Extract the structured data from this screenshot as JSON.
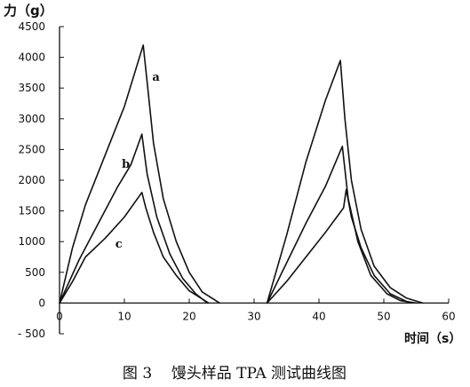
{
  "chart_data": {
    "type": "line",
    "ylabel": "力（g）",
    "xlabel": "时间（s）",
    "caption": "图 3    馒头样品 TPA 测试曲线图",
    "xlim": [
      0,
      60
    ],
    "ylim": [
      -500,
      4500
    ],
    "xticks": [
      0,
      10,
      20,
      30,
      40,
      50,
      60
    ],
    "yticks": [
      -500,
      0,
      500,
      1000,
      1500,
      2000,
      2500,
      3000,
      3500,
      4000,
      4500
    ],
    "xtick_labels": [
      "0",
      "10",
      "20",
      "30",
      "40",
      "50",
      "60"
    ],
    "ytick_labels": [
      "- 500",
      "0",
      "500",
      "1000",
      "1500",
      "2000",
      "2500",
      "3000",
      "3500",
      "4000",
      "4500"
    ],
    "line_color": "#111111",
    "series": [
      {
        "name": "a",
        "segments": [
          [
            [
              0,
              0
            ],
            [
              2,
              900
            ],
            [
              4,
              1600
            ],
            [
              7,
              2400
            ],
            [
              10,
              3200
            ],
            [
              12.9,
              4200
            ],
            [
              13.5,
              3600
            ],
            [
              14.5,
              2600
            ],
            [
              16,
              1700
            ],
            [
              18,
              1000
            ],
            [
              20,
              500
            ],
            [
              22,
              180
            ],
            [
              24.7,
              0
            ]
          ],
          [
            [
              32,
              0
            ],
            [
              35,
              1100
            ],
            [
              38,
              2300
            ],
            [
              41,
              3300
            ],
            [
              43.3,
              3950
            ],
            [
              44,
              3000
            ],
            [
              45,
              2000
            ],
            [
              46.5,
              1200
            ],
            [
              48.5,
              600
            ],
            [
              51,
              250
            ],
            [
              53.5,
              80
            ],
            [
              56,
              0
            ]
          ]
        ]
      },
      {
        "name": "b",
        "segments": [
          [
            [
              0,
              0
            ],
            [
              3,
              700
            ],
            [
              6,
              1300
            ],
            [
              9,
              1900
            ],
            [
              11,
              2250
            ],
            [
              12.7,
              2750
            ],
            [
              13.5,
              2100
            ],
            [
              15,
              1400
            ],
            [
              17,
              800
            ],
            [
              19,
              400
            ],
            [
              21,
              150
            ],
            [
              22.8,
              0
            ]
          ],
          [
            [
              32,
              0
            ],
            [
              35,
              650
            ],
            [
              38,
              1300
            ],
            [
              41,
              1900
            ],
            [
              43,
              2400
            ],
            [
              43.6,
              2550
            ],
            [
              44.5,
              1700
            ],
            [
              46,
              1000
            ],
            [
              48,
              450
            ],
            [
              50.5,
              150
            ],
            [
              52.5,
              40
            ],
            [
              55,
              0
            ]
          ]
        ]
      },
      {
        "name": "c",
        "segments": [
          [
            [
              0,
              0
            ],
            [
              2,
              350
            ],
            [
              4,
              750
            ],
            [
              7,
              1050
            ],
            [
              10,
              1400
            ],
            [
              12.7,
              1800
            ],
            [
              13.3,
              1550
            ],
            [
              14.5,
              1150
            ],
            [
              16,
              750
            ],
            [
              18,
              450
            ],
            [
              20,
              200
            ],
            [
              23,
              0
            ]
          ],
          [
            [
              32,
              0
            ],
            [
              35,
              350
            ],
            [
              38,
              750
            ],
            [
              41,
              1150
            ],
            [
              43.8,
              1550
            ],
            [
              44.2,
              1850
            ],
            [
              45,
              1400
            ],
            [
              46.5,
              900
            ],
            [
              48.5,
              450
            ],
            [
              51,
              150
            ],
            [
              54,
              0
            ]
          ]
        ]
      }
    ],
    "annotations": [
      {
        "text": "a",
        "x": 14.3,
        "y": 3620
      },
      {
        "text": "b",
        "x": 9.6,
        "y": 2200
      },
      {
        "text": "c",
        "x": 8.6,
        "y": 900
      }
    ]
  }
}
